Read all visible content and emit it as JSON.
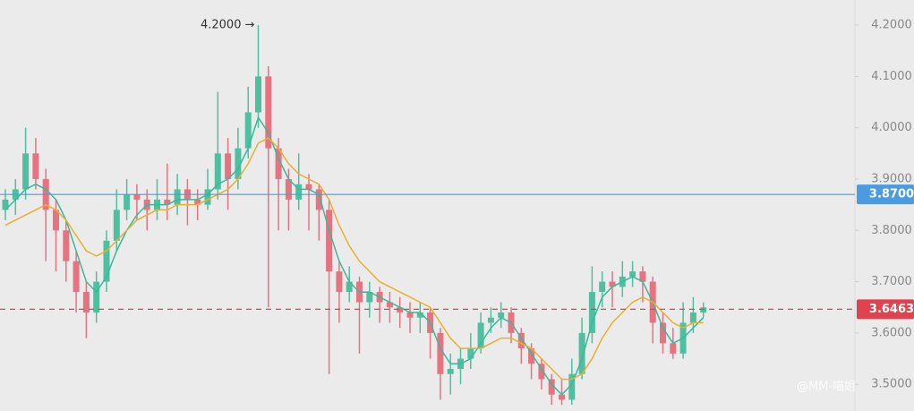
{
  "chart_data": {
    "type": "candlestick",
    "ylim": [
      3.448,
      4.249
    ],
    "yticks": [
      {
        "value": 3.5,
        "label": "3.5000"
      },
      {
        "value": 3.6,
        "label": "3.6000"
      },
      {
        "value": 3.7,
        "label": "3.7000"
      },
      {
        "value": 3.8,
        "label": "3.8000"
      },
      {
        "value": 3.9,
        "label": "3.9000"
      },
      {
        "value": 4.0,
        "label": "4.0000"
      },
      {
        "value": 4.1,
        "label": "4.1000"
      },
      {
        "value": 4.2,
        "label": "4.2000"
      }
    ],
    "up_color": "#4fbfa0",
    "down_color": "#e57380",
    "candles": [
      [
        3.84,
        3.88,
        3.82,
        3.86
      ],
      [
        3.86,
        3.9,
        3.83,
        3.88
      ],
      [
        3.88,
        4.0,
        3.86,
        3.95
      ],
      [
        3.95,
        3.98,
        3.88,
        3.9
      ],
      [
        3.9,
        3.92,
        3.74,
        3.84
      ],
      [
        3.84,
        3.86,
        3.72,
        3.8
      ],
      [
        3.8,
        3.82,
        3.7,
        3.74
      ],
      [
        3.74,
        3.76,
        3.64,
        3.68
      ],
      [
        3.68,
        3.7,
        3.59,
        3.64
      ],
      [
        3.64,
        3.72,
        3.62,
        3.7
      ],
      [
        3.7,
        3.8,
        3.68,
        3.78
      ],
      [
        3.78,
        3.88,
        3.76,
        3.84
      ],
      [
        3.84,
        3.9,
        3.82,
        3.87
      ],
      [
        3.87,
        3.89,
        3.82,
        3.86
      ],
      [
        3.86,
        3.88,
        3.8,
        3.84
      ],
      [
        3.84,
        3.9,
        3.82,
        3.86
      ],
      [
        3.86,
        3.93,
        3.82,
        3.85
      ],
      [
        3.85,
        3.91,
        3.83,
        3.88
      ],
      [
        3.88,
        3.9,
        3.81,
        3.86
      ],
      [
        3.86,
        3.88,
        3.82,
        3.85
      ],
      [
        3.85,
        3.92,
        3.84,
        3.88
      ],
      [
        3.88,
        4.07,
        3.86,
        3.95
      ],
      [
        3.95,
        3.98,
        3.84,
        3.9
      ],
      [
        3.9,
        4.0,
        3.88,
        3.96
      ],
      [
        3.96,
        4.08,
        3.94,
        4.03
      ],
      [
        4.03,
        4.2,
        4.0,
        4.1
      ],
      [
        4.1,
        4.12,
        3.65,
        3.96
      ],
      [
        3.96,
        3.98,
        3.8,
        3.9
      ],
      [
        3.9,
        3.92,
        3.8,
        3.86
      ],
      [
        3.86,
        3.95,
        3.84,
        3.89
      ],
      [
        3.89,
        3.91,
        3.8,
        3.88
      ],
      [
        3.88,
        3.89,
        3.78,
        3.84
      ],
      [
        3.84,
        3.86,
        3.52,
        3.72
      ],
      [
        3.72,
        3.74,
        3.62,
        3.68
      ],
      [
        3.68,
        3.73,
        3.66,
        3.7
      ],
      [
        3.7,
        3.71,
        3.56,
        3.66
      ],
      [
        3.66,
        3.7,
        3.63,
        3.68
      ],
      [
        3.68,
        3.69,
        3.62,
        3.66
      ],
      [
        3.66,
        3.68,
        3.62,
        3.65
      ],
      [
        3.65,
        3.67,
        3.61,
        3.64
      ],
      [
        3.64,
        3.66,
        3.6,
        3.63
      ],
      [
        3.63,
        3.66,
        3.6,
        3.64
      ],
      [
        3.64,
        3.65,
        3.55,
        3.6
      ],
      [
        3.6,
        3.61,
        3.47,
        3.52
      ],
      [
        3.52,
        3.56,
        3.48,
        3.53
      ],
      [
        3.53,
        3.57,
        3.5,
        3.55
      ],
      [
        3.55,
        3.6,
        3.53,
        3.57
      ],
      [
        3.57,
        3.64,
        3.56,
        3.62
      ],
      [
        3.62,
        3.65,
        3.6,
        3.63
      ],
      [
        3.63,
        3.66,
        3.61,
        3.64
      ],
      [
        3.64,
        3.65,
        3.58,
        3.6
      ],
      [
        3.6,
        3.61,
        3.54,
        3.57
      ],
      [
        3.57,
        3.58,
        3.51,
        3.54
      ],
      [
        3.54,
        3.55,
        3.49,
        3.51
      ],
      [
        3.51,
        3.52,
        3.46,
        3.48
      ],
      [
        3.48,
        3.51,
        3.46,
        3.47
      ],
      [
        3.47,
        3.55,
        3.46,
        3.52
      ],
      [
        3.52,
        3.63,
        3.51,
        3.6
      ],
      [
        3.6,
        3.73,
        3.58,
        3.68
      ],
      [
        3.68,
        3.72,
        3.65,
        3.7
      ],
      [
        3.7,
        3.72,
        3.65,
        3.69
      ],
      [
        3.69,
        3.74,
        3.67,
        3.71
      ],
      [
        3.71,
        3.74,
        3.69,
        3.72
      ],
      [
        3.72,
        3.73,
        3.66,
        3.7
      ],
      [
        3.7,
        3.71,
        3.58,
        3.62
      ],
      [
        3.62,
        3.64,
        3.56,
        3.58
      ],
      [
        3.58,
        3.61,
        3.55,
        3.56
      ],
      [
        3.56,
        3.66,
        3.55,
        3.62
      ],
      [
        3.62,
        3.67,
        3.6,
        3.64
      ],
      [
        3.64,
        3.66,
        3.63,
        3.65
      ]
    ],
    "series": [
      {
        "color": "#3bb89b",
        "values": [
          3.84,
          3.86,
          3.88,
          3.89,
          3.88,
          3.86,
          3.82,
          3.76,
          3.7,
          3.68,
          3.71,
          3.76,
          3.8,
          3.83,
          3.85,
          3.85,
          3.85,
          3.86,
          3.86,
          3.86,
          3.87,
          3.89,
          3.9,
          3.92,
          3.96,
          4.02,
          3.99,
          3.94,
          3.9,
          3.88,
          3.88,
          3.87,
          3.8,
          3.74,
          3.7,
          3.68,
          3.68,
          3.67,
          3.66,
          3.65,
          3.64,
          3.64,
          3.62,
          3.57,
          3.54,
          3.54,
          3.55,
          3.58,
          3.61,
          3.63,
          3.62,
          3.59,
          3.56,
          3.53,
          3.5,
          3.48,
          3.5,
          3.55,
          3.62,
          3.67,
          3.69,
          3.7,
          3.71,
          3.7,
          3.66,
          3.61,
          3.58,
          3.59,
          3.61,
          3.63
        ]
      },
      {
        "color": "#e8b030",
        "values": [
          3.81,
          3.82,
          3.83,
          3.84,
          3.85,
          3.84,
          3.82,
          3.79,
          3.76,
          3.75,
          3.76,
          3.78,
          3.8,
          3.82,
          3.83,
          3.84,
          3.84,
          3.85,
          3.85,
          3.85,
          3.86,
          3.87,
          3.88,
          3.9,
          3.93,
          3.97,
          3.98,
          3.96,
          3.93,
          3.91,
          3.9,
          3.89,
          3.86,
          3.81,
          3.77,
          3.74,
          3.72,
          3.7,
          3.69,
          3.68,
          3.67,
          3.66,
          3.65,
          3.62,
          3.59,
          3.57,
          3.57,
          3.57,
          3.58,
          3.59,
          3.59,
          3.58,
          3.57,
          3.55,
          3.53,
          3.51,
          3.51,
          3.52,
          3.55,
          3.59,
          3.62,
          3.64,
          3.66,
          3.67,
          3.66,
          3.64,
          3.62,
          3.61,
          3.62,
          3.62
        ]
      }
    ],
    "price_lines": [
      {
        "value": 3.87,
        "label": "3.8700",
        "color": "#4a9be0",
        "style": "solid"
      },
      {
        "value": 3.6463,
        "label": "3.6463",
        "color": "#e0434f",
        "style": "dashed"
      }
    ],
    "annotation": {
      "text": "4.2000 →",
      "value": 4.2
    },
    "watermark": "@MM-喵姐"
  }
}
